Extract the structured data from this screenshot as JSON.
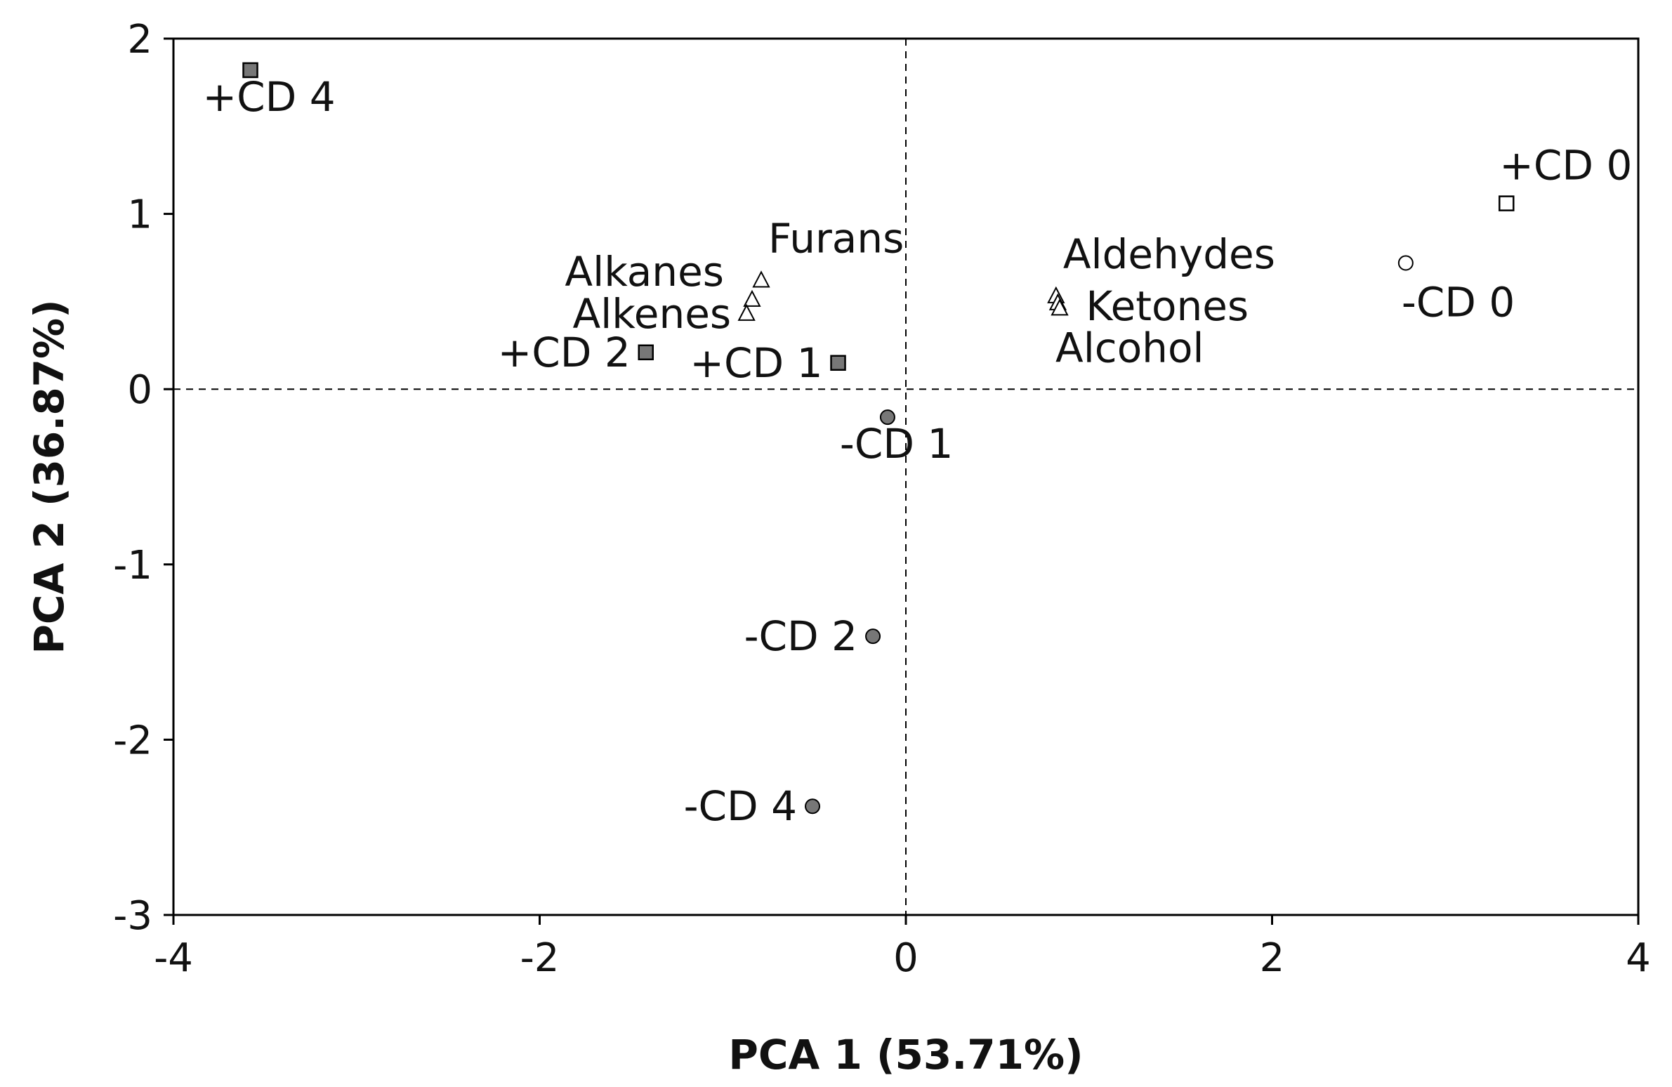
{
  "chart_data": {
    "type": "scatter",
    "title": "",
    "xlabel": "PCA 1 (53.71%)",
    "ylabel": "PCA 2 (36.87%)",
    "xlim": [
      -4,
      4
    ],
    "ylim": [
      -3,
      2
    ],
    "xticks": [
      -4,
      -2,
      0,
      2,
      4
    ],
    "yticks": [
      -3,
      -2,
      -1,
      0,
      1,
      2
    ],
    "xtick_labels": [
      "-4",
      "-2",
      "0",
      "2",
      "4"
    ],
    "ytick_labels": [
      "-3",
      "-2",
      "-1",
      "0",
      "1",
      "2"
    ],
    "grid": false,
    "reference_lines": {
      "x": 0,
      "y": 0,
      "style": "dashed"
    },
    "points": [
      {
        "label": "+CD 4",
        "x": -3.58,
        "y": 1.82,
        "marker": "square",
        "fill": "#777777",
        "label_pos": "below-left"
      },
      {
        "label": "+CD 2",
        "x": -1.42,
        "y": 0.21,
        "marker": "square",
        "fill": "#777777",
        "label_pos": "left"
      },
      {
        "label": "+CD 1",
        "x": -0.37,
        "y": 0.15,
        "marker": "square",
        "fill": "#777777",
        "label_pos": "left"
      },
      {
        "label": "+CD 0",
        "x": 3.28,
        "y": 1.06,
        "marker": "square",
        "fill": "#ffffff",
        "label_pos": "above"
      },
      {
        "label": "-CD 0",
        "x": 2.73,
        "y": 0.72,
        "marker": "circle",
        "fill": "#ffffff",
        "label_pos": "below-right"
      },
      {
        "label": "-CD 1",
        "x": -0.1,
        "y": -0.16,
        "marker": "circle",
        "fill": "#777777",
        "label_pos": "below-left"
      },
      {
        "label": "-CD 2",
        "x": -0.18,
        "y": -1.41,
        "marker": "circle",
        "fill": "#777777",
        "label_pos": "left"
      },
      {
        "label": "-CD 4",
        "x": -0.51,
        "y": -2.38,
        "marker": "circle",
        "fill": "#777777",
        "label_pos": "left"
      },
      {
        "label": "Furans",
        "x": -0.79,
        "y": 0.62,
        "marker": "triangle",
        "fill": "#ffffff",
        "label_pos": "above-right"
      },
      {
        "label": "Alkanes",
        "x": -0.84,
        "y": 0.51,
        "marker": "triangle",
        "fill": "#ffffff",
        "label_pos": "upper-left"
      },
      {
        "label": "Alkenes",
        "x": -0.87,
        "y": 0.43,
        "marker": "triangle",
        "fill": "#ffffff",
        "label_pos": "left"
      },
      {
        "label": "Aldehydes",
        "x": 0.82,
        "y": 0.53,
        "marker": "triangle",
        "fill": "#ffffff",
        "label_pos": "above-right"
      },
      {
        "label": "Ketones",
        "x": 0.83,
        "y": 0.49,
        "marker": "triangle",
        "fill": "#ffffff",
        "label_pos": "right"
      },
      {
        "label": "Alcohol",
        "x": 0.84,
        "y": 0.46,
        "marker": "triangle",
        "fill": "#ffffff",
        "label_pos": "below-right"
      }
    ]
  }
}
